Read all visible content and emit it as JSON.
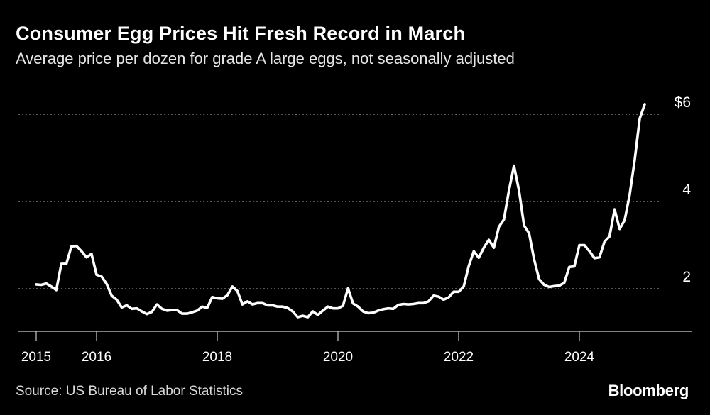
{
  "title": "Consumer Egg Prices Hit Fresh Record in March",
  "subtitle": "Average price per dozen for grade A large eggs, not seasonally adjusted",
  "source": "Source: US Bureau of Labor Statistics",
  "brand": "Bloomberg",
  "colors": {
    "background": "#000000",
    "line": "#ffffff",
    "grid": "#8a8a8a",
    "text": "#ffffff"
  },
  "chart_data": {
    "type": "line",
    "title": "Consumer Egg Prices Hit Fresh Record in March",
    "subtitle": "Average price per dozen for grade A large eggs, not seasonally adjusted",
    "x_unit": "year",
    "xlim": [
      2015,
      2025.85
    ],
    "ylim": [
      1.0,
      6.3
    ],
    "y_ticks": [
      2,
      4,
      6
    ],
    "y_tick_labels": [
      "2",
      "4",
      "$6"
    ],
    "x_ticks": [
      2015,
      2016,
      2018,
      2020,
      2022,
      2024
    ],
    "x_tick_labels": [
      "2015",
      "2016",
      "2018",
      "2020",
      "2022",
      "2024"
    ],
    "grid": "horizontal dotted",
    "series": [
      {
        "name": "",
        "points": [
          [
            2015.0,
            2.1
          ],
          [
            2015.083,
            2.09
          ],
          [
            2015.167,
            2.12
          ],
          [
            2015.25,
            2.05
          ],
          [
            2015.333,
            1.97
          ],
          [
            2015.417,
            2.57
          ],
          [
            2015.5,
            2.57
          ],
          [
            2015.583,
            2.97
          ],
          [
            2015.667,
            2.98
          ],
          [
            2015.75,
            2.86
          ],
          [
            2015.833,
            2.72
          ],
          [
            2015.917,
            2.8
          ],
          [
            2016.0,
            2.32
          ],
          [
            2016.083,
            2.28
          ],
          [
            2016.167,
            2.11
          ],
          [
            2016.25,
            1.84
          ],
          [
            2016.333,
            1.75
          ],
          [
            2016.417,
            1.57
          ],
          [
            2016.5,
            1.62
          ],
          [
            2016.583,
            1.54
          ],
          [
            2016.667,
            1.55
          ],
          [
            2016.75,
            1.48
          ],
          [
            2016.833,
            1.42
          ],
          [
            2016.917,
            1.47
          ],
          [
            2017.0,
            1.64
          ],
          [
            2017.083,
            1.54
          ],
          [
            2017.167,
            1.5
          ],
          [
            2017.25,
            1.51
          ],
          [
            2017.333,
            1.51
          ],
          [
            2017.417,
            1.43
          ],
          [
            2017.5,
            1.43
          ],
          [
            2017.583,
            1.46
          ],
          [
            2017.667,
            1.5
          ],
          [
            2017.75,
            1.59
          ],
          [
            2017.833,
            1.56
          ],
          [
            2017.917,
            1.81
          ],
          [
            2018.0,
            1.78
          ],
          [
            2018.083,
            1.77
          ],
          [
            2018.167,
            1.85
          ],
          [
            2018.25,
            2.05
          ],
          [
            2018.333,
            1.95
          ],
          [
            2018.417,
            1.64
          ],
          [
            2018.5,
            1.71
          ],
          [
            2018.583,
            1.64
          ],
          [
            2018.667,
            1.67
          ],
          [
            2018.75,
            1.67
          ],
          [
            2018.833,
            1.62
          ],
          [
            2018.917,
            1.62
          ],
          [
            2019.0,
            1.59
          ],
          [
            2019.083,
            1.59
          ],
          [
            2019.167,
            1.56
          ],
          [
            2019.25,
            1.48
          ],
          [
            2019.333,
            1.35
          ],
          [
            2019.417,
            1.38
          ],
          [
            2019.5,
            1.35
          ],
          [
            2019.583,
            1.48
          ],
          [
            2019.667,
            1.4
          ],
          [
            2019.75,
            1.5
          ],
          [
            2019.833,
            1.59
          ],
          [
            2019.917,
            1.55
          ],
          [
            2020.0,
            1.55
          ],
          [
            2020.083,
            1.61
          ],
          [
            2020.167,
            2.01
          ],
          [
            2020.25,
            1.66
          ],
          [
            2020.333,
            1.59
          ],
          [
            2020.417,
            1.48
          ],
          [
            2020.5,
            1.44
          ],
          [
            2020.583,
            1.45
          ],
          [
            2020.667,
            1.5
          ],
          [
            2020.75,
            1.53
          ],
          [
            2020.833,
            1.55
          ],
          [
            2020.917,
            1.54
          ],
          [
            2021.0,
            1.63
          ],
          [
            2021.083,
            1.65
          ],
          [
            2021.167,
            1.64
          ],
          [
            2021.25,
            1.65
          ],
          [
            2021.333,
            1.67
          ],
          [
            2021.417,
            1.67
          ],
          [
            2021.5,
            1.71
          ],
          [
            2021.583,
            1.84
          ],
          [
            2021.667,
            1.82
          ],
          [
            2021.75,
            1.75
          ],
          [
            2021.833,
            1.8
          ],
          [
            2021.917,
            1.93
          ],
          [
            2022.0,
            1.93
          ],
          [
            2022.083,
            2.05
          ],
          [
            2022.167,
            2.52
          ],
          [
            2022.25,
            2.86
          ],
          [
            2022.333,
            2.71
          ],
          [
            2022.417,
            2.94
          ],
          [
            2022.5,
            3.12
          ],
          [
            2022.583,
            2.94
          ],
          [
            2022.667,
            3.42
          ],
          [
            2022.75,
            3.59
          ],
          [
            2022.833,
            4.25
          ],
          [
            2022.917,
            4.82
          ],
          [
            2023.0,
            4.25
          ],
          [
            2023.083,
            3.45
          ],
          [
            2023.167,
            3.27
          ],
          [
            2023.25,
            2.67
          ],
          [
            2023.333,
            2.22
          ],
          [
            2023.417,
            2.09
          ],
          [
            2023.5,
            2.04
          ],
          [
            2023.583,
            2.06
          ],
          [
            2023.667,
            2.07
          ],
          [
            2023.75,
            2.14
          ],
          [
            2023.833,
            2.5
          ],
          [
            2023.917,
            2.51
          ],
          [
            2024.0,
            3.0
          ],
          [
            2024.083,
            3.0
          ],
          [
            2024.167,
            2.86
          ],
          [
            2024.25,
            2.7
          ],
          [
            2024.333,
            2.72
          ],
          [
            2024.417,
            3.08
          ],
          [
            2024.5,
            3.2
          ],
          [
            2024.583,
            3.82
          ],
          [
            2024.667,
            3.37
          ],
          [
            2024.75,
            3.57
          ],
          [
            2024.833,
            4.15
          ],
          [
            2024.917,
            4.95
          ],
          [
            2025.0,
            5.9
          ],
          [
            2025.083,
            6.23
          ]
        ]
      }
    ]
  }
}
